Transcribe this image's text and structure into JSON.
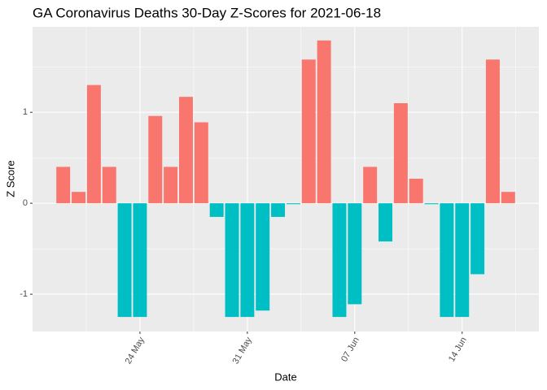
{
  "chart_data": {
    "type": "bar",
    "title": "GA Coronavirus Deaths 30-Day Z-Scores for 2021-06-18",
    "x_label": "Date",
    "y_label": "Z Score",
    "categories": [
      null,
      null,
      null,
      null,
      null,
      "24 May",
      null,
      null,
      null,
      null,
      null,
      null,
      "31 May",
      null,
      null,
      null,
      null,
      null,
      null,
      "07 Jun",
      null,
      null,
      null,
      null,
      null,
      null,
      "14 Jun",
      null,
      null,
      null
    ],
    "values": [
      0.4,
      0.125,
      1.3,
      0.4,
      -1.25,
      -1.25,
      0.96,
      0.4,
      1.17,
      0.89,
      -0.15,
      -1.25,
      -1.25,
      -1.18,
      -0.15,
      -0.01,
      1.58,
      1.79,
      -1.25,
      -1.11,
      0.4,
      -0.42,
      1.1,
      0.27,
      -0.01,
      -1.25,
      -1.25,
      -0.78,
      1.58,
      0.125
    ],
    "positive_color": "#F8766D",
    "negative_color": "#00BFC4",
    "ylim": [
      -1.41,
      1.94
    ],
    "yticks": [
      -1,
      0,
      1
    ],
    "grid": true
  }
}
